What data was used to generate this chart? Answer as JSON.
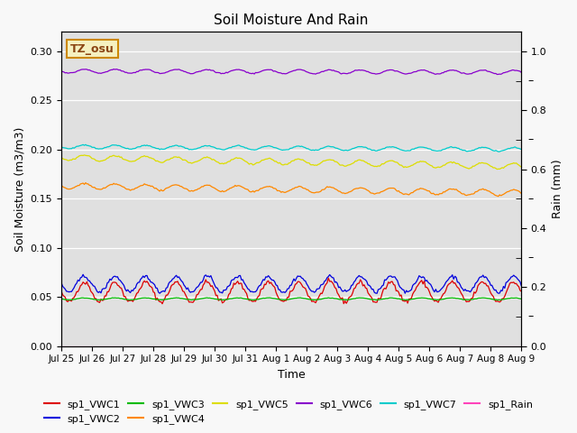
{
  "title": "Soil Moisture And Rain",
  "xlabel": "Time",
  "ylabel_left": "Soil Moisture (m3/m3)",
  "ylabel_right": "Rain (mm)",
  "ylim_left": [
    0.0,
    0.32
  ],
  "ylim_right": [
    0.0,
    1.0667
  ],
  "yticks_left": [
    0.0,
    0.05,
    0.1,
    0.15,
    0.2,
    0.25,
    0.3
  ],
  "ytick_labels_left": [
    "0.00",
    "0.05",
    "0.10",
    "0.15",
    "0.20",
    "0.25",
    "0.30"
  ],
  "yticks_right_labeled": [
    0.0,
    0.2,
    0.4,
    0.6,
    0.8,
    1.0
  ],
  "yticks_right_minor": [
    0.1,
    0.3,
    0.5,
    0.7,
    0.9
  ],
  "site_label": "TZ_osu",
  "background_color": "#e0e0e0",
  "n_points": 360,
  "series": {
    "sp1_VWC1": {
      "color": "#dd0000",
      "base": 0.055,
      "amplitude": 0.01,
      "period": 24,
      "trend": 0.0
    },
    "sp1_VWC2": {
      "color": "#0000dd",
      "base": 0.063,
      "amplitude": 0.008,
      "period": 24,
      "trend": 0.0
    },
    "sp1_VWC3": {
      "color": "#00bb00",
      "base": 0.048,
      "amplitude": 0.001,
      "period": 24,
      "trend": 0.0
    },
    "sp1_VWC4": {
      "color": "#ff8800",
      "base": 0.163,
      "amplitude": 0.003,
      "period": 24,
      "trend": -2e-05
    },
    "sp1_VWC5": {
      "color": "#dddd00",
      "base": 0.192,
      "amplitude": 0.003,
      "period": 24,
      "trend": -2.5e-05
    },
    "sp1_VWC6": {
      "color": "#8800cc",
      "base": 0.28,
      "amplitude": 0.002,
      "period": 24,
      "trend": -3e-06
    },
    "sp1_VWC7": {
      "color": "#00cccc",
      "base": 0.203,
      "amplitude": 0.002,
      "period": 24,
      "trend": -8e-06
    },
    "sp1_Rain": {
      "color": "#ff44bb",
      "base": 0.0,
      "amplitude": 0.0,
      "period": 24,
      "trend": 0.0
    }
  },
  "xtick_labels": [
    "Jul 25",
    "Jul 26",
    "Jul 27",
    "Jul 28",
    "Jul 29",
    "Jul 30",
    "Jul 31",
    "Aug 1",
    "Aug 2",
    "Aug 3",
    "Aug 4",
    "Aug 5",
    "Aug 6",
    "Aug 7",
    "Aug 8",
    "Aug 9"
  ],
  "xtick_positions": [
    0,
    24,
    48,
    72,
    96,
    120,
    144,
    168,
    192,
    216,
    240,
    264,
    288,
    312,
    336,
    360
  ]
}
